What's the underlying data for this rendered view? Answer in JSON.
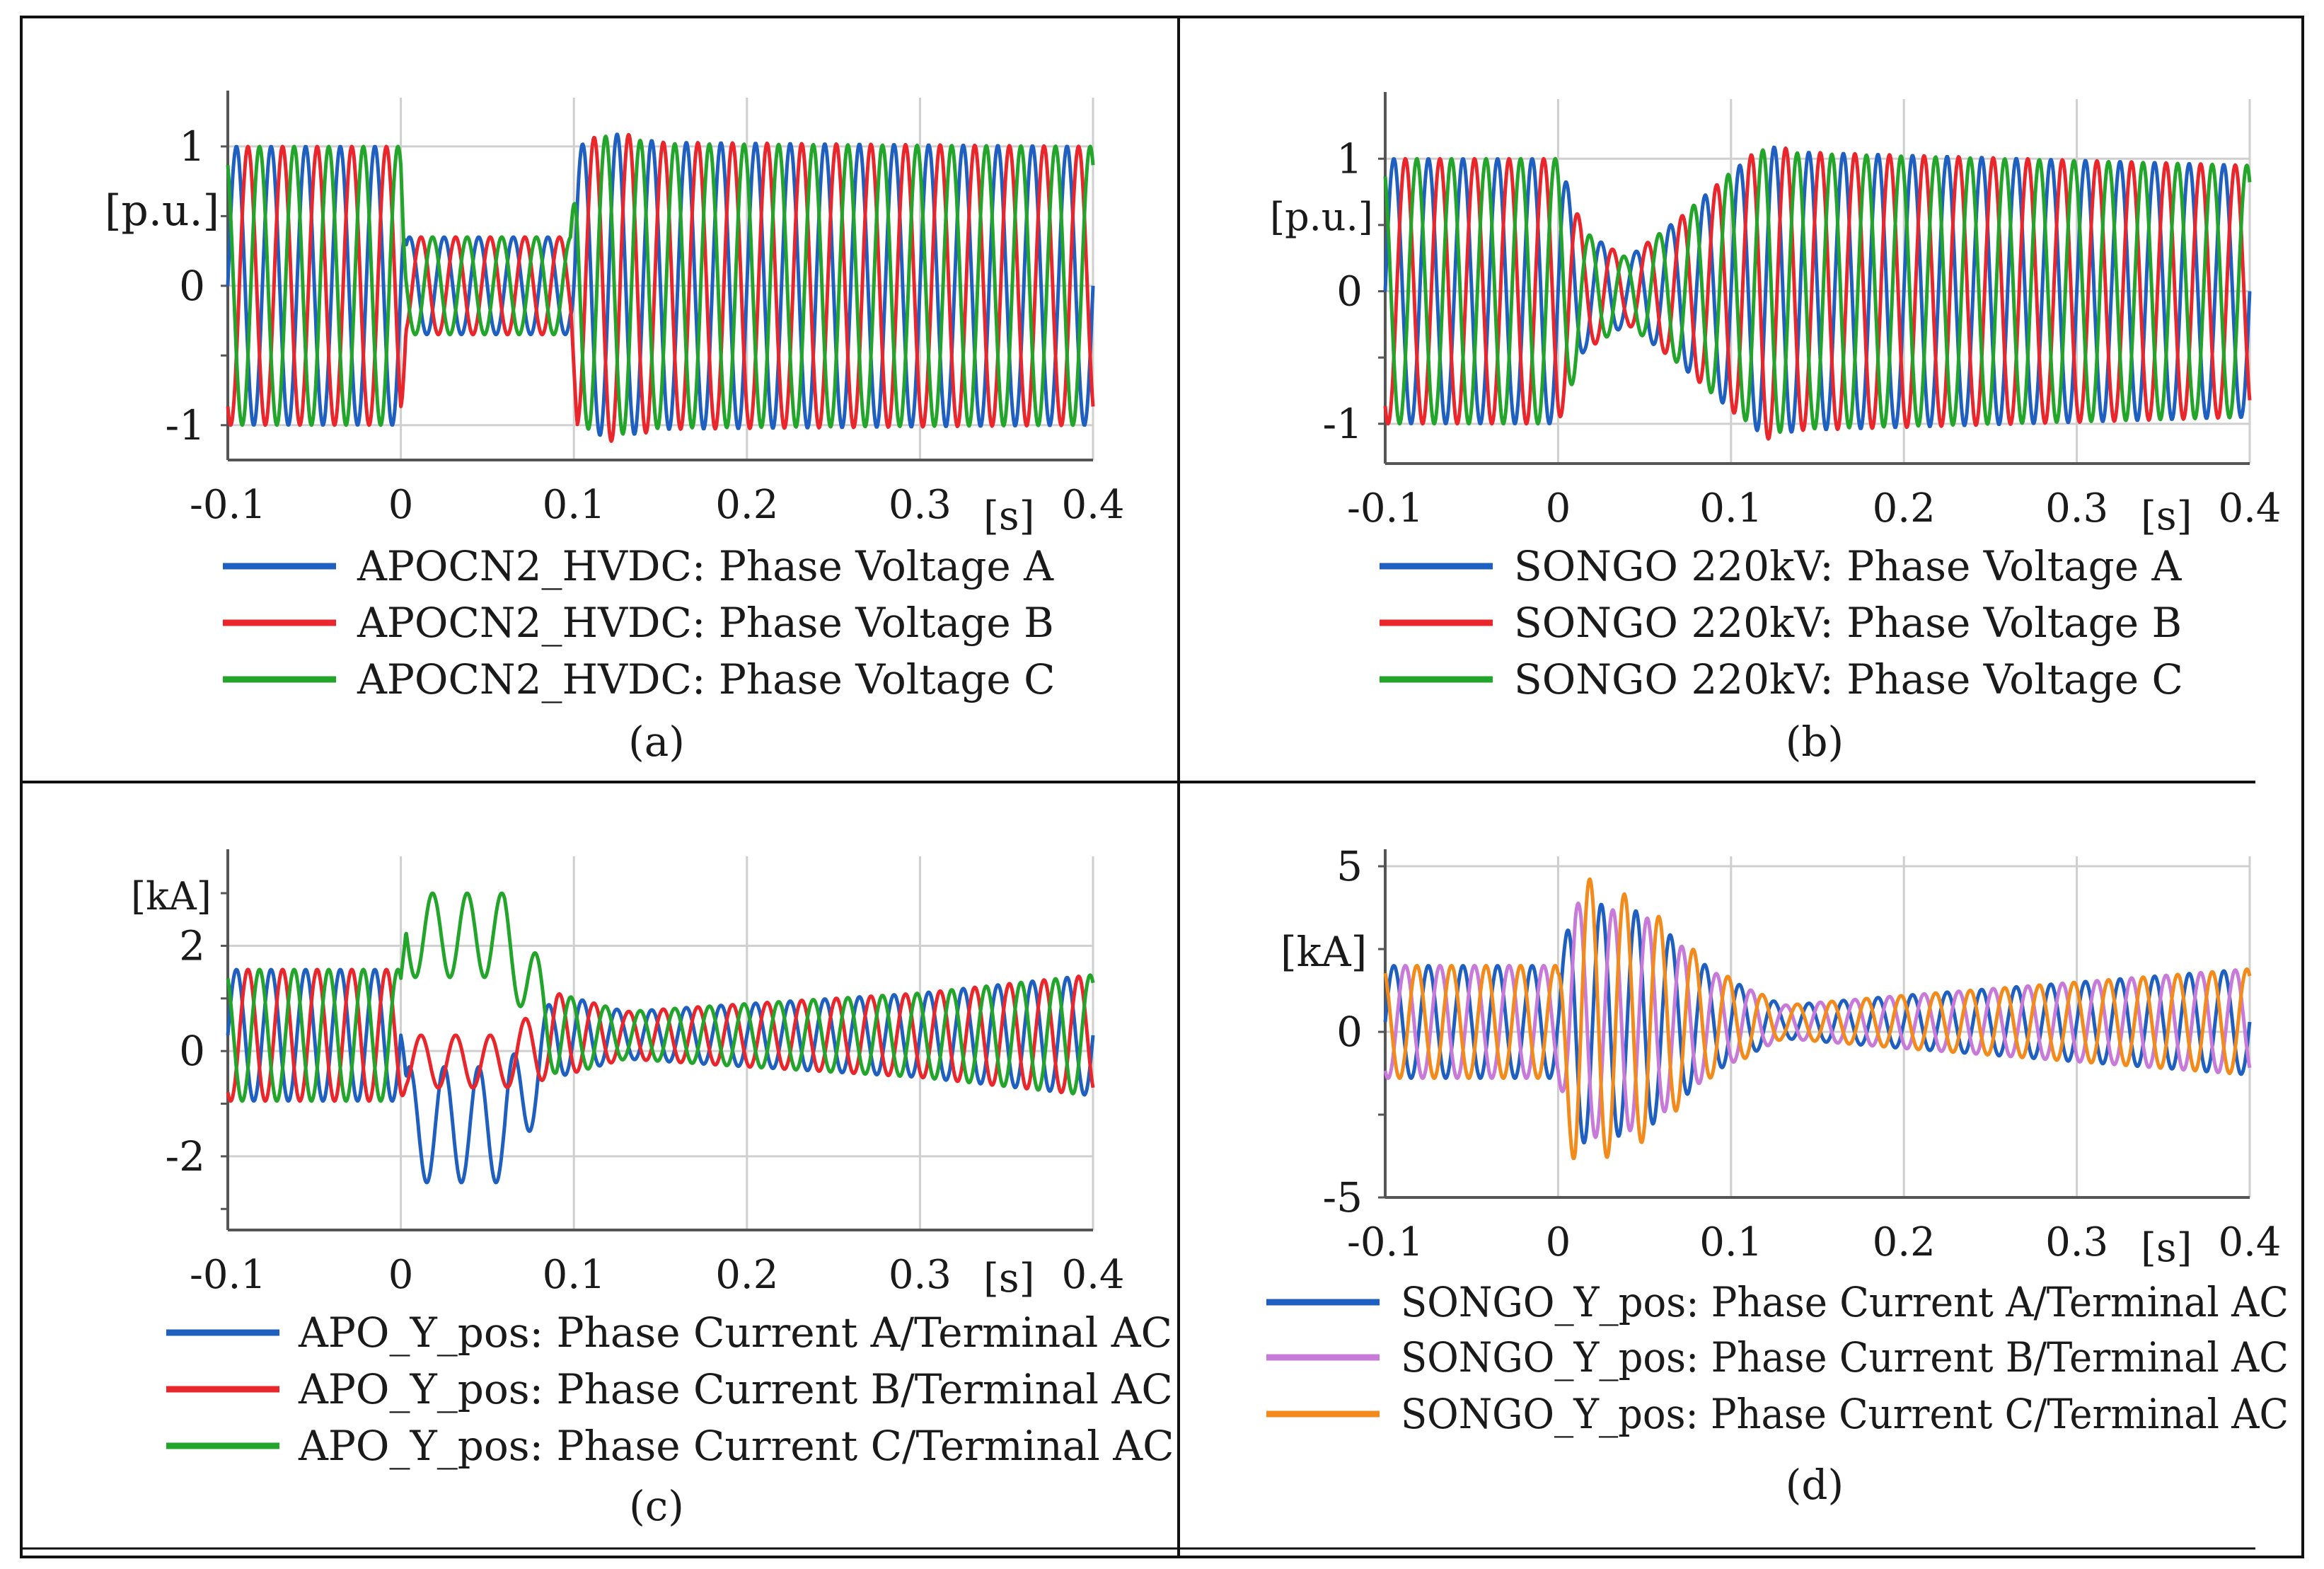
{
  "figure": {
    "panels": [
      {
        "id": "a",
        "caption": "(a)",
        "unit_label": "[p.u.]",
        "x_unit_label": "[s]",
        "legend": [
          "APOCN2_HVDC: Phase Voltage A",
          "APOCN2_HVDC: Phase Voltage B",
          "APOCN2_HVDC: Phase Voltage C"
        ]
      },
      {
        "id": "b",
        "caption": "(b)",
        "unit_label": "[p.u.]",
        "x_unit_label": "[s]",
        "legend": [
          "SONGO 220kV: Phase Voltage A",
          "SONGO 220kV: Phase Voltage B",
          "SONGO 220kV: Phase Voltage C"
        ]
      },
      {
        "id": "c",
        "caption": "(c)",
        "unit_label": "[kA]",
        "x_unit_label": "[s]",
        "legend": [
          "APO_Y_pos: Phase Current A/Terminal AC",
          "APO_Y_pos: Phase Current B/Terminal AC",
          "APO_Y_pos: Phase Current C/Terminal AC"
        ]
      },
      {
        "id": "d",
        "caption": "(d)",
        "unit_label": "[kA]",
        "x_unit_label": "[s]",
        "legend": [
          "SONGO_Y_pos: Phase Current A/Terminal AC",
          "SONGO_Y_pos: Phase Current B/Terminal AC",
          "SONGO_Y_pos: Phase Current C/Terminal AC"
        ]
      }
    ]
  },
  "chart_data": [
    {
      "type": "line",
      "panel": "a",
      "title": "",
      "xlabel": "[s]",
      "ylabel": "[p.u.]",
      "xlim": [
        -0.1,
        0.4
      ],
      "ylim": [
        -1.25,
        1.35
      ],
      "x_ticks": [
        "-0.1",
        "0",
        "0.1",
        "0.2",
        "0.3",
        "0.4"
      ],
      "x_tick_values": [
        -0.1,
        0,
        0.1,
        0.2,
        0.3,
        0.4
      ],
      "y_ticks": [
        "-1",
        "0",
        "1"
      ],
      "y_tick_values": [
        -1,
        0,
        1
      ],
      "frequency_hz": 50,
      "sample_step_s": 0.0004,
      "series": [
        {
          "name": "APOCN2_HVDC: Phase Voltage A",
          "color": "#1f5fbf",
          "phase_deg": 0,
          "envelope": [
            [
              -0.1,
              1.0
            ],
            [
              0.0,
              1.0
            ],
            [
              0.003,
              0.35
            ],
            [
              0.098,
              0.35
            ],
            [
              0.102,
              1.0
            ],
            [
              0.12,
              1.1
            ],
            [
              0.15,
              1.03
            ],
            [
              0.4,
              1.0
            ]
          ],
          "offset": [
            [
              -0.1,
              0.0
            ],
            [
              0.4,
              0.0
            ]
          ]
        },
        {
          "name": "APOCN2_HVDC: Phase Voltage B",
          "color": "#e8262b",
          "phase_deg": -120,
          "envelope": [
            [
              -0.1,
              1.0
            ],
            [
              0.0,
              1.0
            ],
            [
              0.003,
              0.35
            ],
            [
              0.098,
              0.35
            ],
            [
              0.102,
              1.0
            ],
            [
              0.12,
              1.12
            ],
            [
              0.15,
              1.03
            ],
            [
              0.4,
              1.0
            ]
          ],
          "offset": [
            [
              -0.1,
              0.0
            ],
            [
              0.4,
              0.0
            ]
          ]
        },
        {
          "name": "APOCN2_HVDC: Phase Voltage C",
          "color": "#22a52a",
          "phase_deg": 120,
          "envelope": [
            [
              -0.1,
              1.0
            ],
            [
              0.0,
              1.0
            ],
            [
              0.003,
              0.35
            ],
            [
              0.098,
              0.35
            ],
            [
              0.102,
              1.0
            ],
            [
              0.12,
              1.08
            ],
            [
              0.15,
              1.02
            ],
            [
              0.4,
              1.0
            ]
          ],
          "offset": [
            [
              -0.1,
              0.0
            ],
            [
              0.4,
              0.0
            ]
          ]
        }
      ]
    },
    {
      "type": "line",
      "panel": "b",
      "title": "",
      "xlabel": "[s]",
      "ylabel": "[p.u.]",
      "xlim": [
        -0.1,
        0.4
      ],
      "ylim": [
        -1.3,
        1.45
      ],
      "x_ticks": [
        "-0.1",
        "0",
        "0.1",
        "0.2",
        "0.3",
        "0.4"
      ],
      "x_tick_values": [
        -0.1,
        0,
        0.1,
        0.2,
        0.3,
        0.4
      ],
      "y_ticks": [
        "-1",
        "0",
        "1"
      ],
      "y_tick_values": [
        -1,
        0,
        1
      ],
      "frequency_hz": 50,
      "sample_step_s": 0.0004,
      "series": [
        {
          "name": "SONGO 220kV: Phase Voltage A",
          "color": "#1f5fbf",
          "phase_deg": 0,
          "envelope": [
            [
              -0.1,
              1.0
            ],
            [
              0.0,
              1.0
            ],
            [
              0.015,
              0.45
            ],
            [
              0.04,
              0.25
            ],
            [
              0.07,
              0.55
            ],
            [
              0.1,
              0.9
            ],
            [
              0.12,
              1.1
            ],
            [
              0.14,
              1.05
            ],
            [
              0.4,
              0.95
            ]
          ],
          "offset": [
            [
              -0.1,
              0.0
            ],
            [
              0.4,
              0.0
            ]
          ]
        },
        {
          "name": "SONGO 220kV: Phase Voltage B",
          "color": "#e8262b",
          "phase_deg": -120,
          "envelope": [
            [
              -0.1,
              1.0
            ],
            [
              0.0,
              1.0
            ],
            [
              0.015,
              0.45
            ],
            [
              0.04,
              0.25
            ],
            [
              0.07,
              0.55
            ],
            [
              0.1,
              0.9
            ],
            [
              0.12,
              1.12
            ],
            [
              0.14,
              1.05
            ],
            [
              0.4,
              0.95
            ]
          ],
          "offset": [
            [
              -0.1,
              0.0
            ],
            [
              0.4,
              0.0
            ]
          ]
        },
        {
          "name": "SONGO 220kV: Phase Voltage C",
          "color": "#22a52a",
          "phase_deg": 120,
          "envelope": [
            [
              -0.1,
              1.0
            ],
            [
              0.0,
              1.0
            ],
            [
              0.015,
              0.45
            ],
            [
              0.04,
              0.25
            ],
            [
              0.07,
              0.55
            ],
            [
              0.1,
              0.9
            ],
            [
              0.12,
              1.08
            ],
            [
              0.14,
              1.04
            ],
            [
              0.4,
              0.95
            ]
          ],
          "offset": [
            [
              -0.1,
              0.0
            ],
            [
              0.4,
              0.0
            ]
          ]
        }
      ]
    },
    {
      "type": "line",
      "panel": "c",
      "title": "",
      "xlabel": "[s]",
      "ylabel": "[kA]",
      "xlim": [
        -0.1,
        0.4
      ],
      "ylim": [
        -3.4,
        3.7
      ],
      "x_ticks": [
        "-0.1",
        "0",
        "0.1",
        "0.2",
        "0.3",
        "0.4"
      ],
      "x_tick_values": [
        -0.1,
        0,
        0.1,
        0.2,
        0.3,
        0.4
      ],
      "y_ticks": [
        "-2",
        "0",
        "2"
      ],
      "y_tick_values": [
        -2,
        0,
        2
      ],
      "frequency_hz": 50,
      "sample_step_s": 0.0004,
      "series": [
        {
          "name": "APO_Y_pos: Phase Current A/Terminal AC",
          "color": "#1f5fbf",
          "phase_deg": 0,
          "envelope": [
            [
              -0.1,
              1.25
            ],
            [
              0.0,
              1.25
            ],
            [
              0.003,
              1.1
            ],
            [
              0.06,
              1.1
            ],
            [
              0.09,
              0.8
            ],
            [
              0.13,
              0.45
            ],
            [
              0.2,
              0.6
            ],
            [
              0.3,
              0.8
            ],
            [
              0.4,
              1.15
            ]
          ],
          "offset": [
            [
              -0.1,
              0.3
            ],
            [
              0.0,
              0.3
            ],
            [
              0.003,
              -1.4
            ],
            [
              0.06,
              -1.4
            ],
            [
              0.09,
              0.3
            ],
            [
              0.4,
              0.3
            ]
          ]
        },
        {
          "name": "APO_Y_pos: Phase Current B/Terminal AC",
          "color": "#e8262b",
          "phase_deg": -120,
          "envelope": [
            [
              -0.1,
              1.25
            ],
            [
              0.0,
              1.25
            ],
            [
              0.003,
              0.5
            ],
            [
              0.06,
              0.5
            ],
            [
              0.09,
              0.8
            ],
            [
              0.13,
              0.45
            ],
            [
              0.2,
              0.6
            ],
            [
              0.3,
              0.8
            ],
            [
              0.4,
              1.15
            ]
          ],
          "offset": [
            [
              -0.1,
              0.3
            ],
            [
              0.0,
              0.3
            ],
            [
              0.003,
              -0.2
            ],
            [
              0.06,
              -0.2
            ],
            [
              0.09,
              0.3
            ],
            [
              0.4,
              0.3
            ]
          ]
        },
        {
          "name": "APO_Y_pos: Phase Current C/Terminal AC",
          "color": "#22a52a",
          "phase_deg": 120,
          "envelope": [
            [
              -0.1,
              1.25
            ],
            [
              0.0,
              1.25
            ],
            [
              0.003,
              0.8
            ],
            [
              0.06,
              0.8
            ],
            [
              0.09,
              0.8
            ],
            [
              0.13,
              0.45
            ],
            [
              0.2,
              0.6
            ],
            [
              0.3,
              0.8
            ],
            [
              0.4,
              1.15
            ]
          ],
          "offset": [
            [
              -0.1,
              0.3
            ],
            [
              0.0,
              0.3
            ],
            [
              0.003,
              2.2
            ],
            [
              0.06,
              2.2
            ],
            [
              0.09,
              0.3
            ],
            [
              0.4,
              0.3
            ]
          ]
        }
      ]
    },
    {
      "type": "line",
      "panel": "d",
      "title": "",
      "xlabel": "[s]",
      "ylabel": "[kA]",
      "xlim": [
        -0.1,
        0.4
      ],
      "ylim": [
        -5.0,
        5.3
      ],
      "x_ticks": [
        "-0.1",
        "0",
        "0.1",
        "0.2",
        "0.3",
        "0.4"
      ],
      "x_tick_values": [
        -0.1,
        0,
        0.1,
        0.2,
        0.3,
        0.4
      ],
      "y_ticks": [
        "-5",
        "0",
        "5"
      ],
      "y_tick_values": [
        -5,
        0,
        5
      ],
      "frequency_hz": 50,
      "sample_step_s": 0.0004,
      "series": [
        {
          "name": "SONGO_Y_pos: Phase Current A/Terminal AC",
          "color": "#1f5fbf",
          "phase_deg": 0,
          "envelope": [
            [
              -0.1,
              1.7
            ],
            [
              0.0,
              1.7
            ],
            [
              0.01,
              3.7
            ],
            [
              0.05,
              3.3
            ],
            [
              0.09,
              1.5
            ],
            [
              0.13,
              0.5
            ],
            [
              0.2,
              0.8
            ],
            [
              0.3,
              1.2
            ],
            [
              0.4,
              1.6
            ]
          ],
          "offset": [
            [
              -0.1,
              0.3
            ],
            [
              0.4,
              0.3
            ]
          ]
        },
        {
          "name": "SONGO_Y_pos: Phase Current B/Terminal AC",
          "color": "#c77ad8",
          "phase_deg": -120,
          "envelope": [
            [
              -0.1,
              1.7
            ],
            [
              0.0,
              1.7
            ],
            [
              0.01,
              3.6
            ],
            [
              0.05,
              3.2
            ],
            [
              0.09,
              1.5
            ],
            [
              0.13,
              0.5
            ],
            [
              0.2,
              0.8
            ],
            [
              0.3,
              1.2
            ],
            [
              0.4,
              1.6
            ]
          ],
          "offset": [
            [
              -0.1,
              0.3
            ],
            [
              0.4,
              0.3
            ]
          ]
        },
        {
          "name": "SONGO_Y_pos: Phase Current C/Terminal AC",
          "color": "#f28a1c",
          "phase_deg": 120,
          "envelope": [
            [
              -0.1,
              1.7
            ],
            [
              0.0,
              1.7
            ],
            [
              0.01,
              4.5
            ],
            [
              0.05,
              3.6
            ],
            [
              0.09,
              1.6
            ],
            [
              0.13,
              0.5
            ],
            [
              0.2,
              0.8
            ],
            [
              0.3,
              1.2
            ],
            [
              0.4,
              1.6
            ]
          ],
          "offset": [
            [
              -0.1,
              0.3
            ],
            [
              0.4,
              0.3
            ]
          ]
        }
      ]
    }
  ]
}
